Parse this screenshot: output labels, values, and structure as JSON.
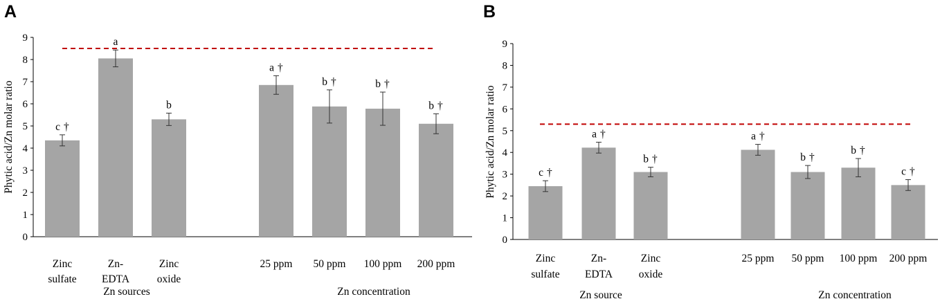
{
  "chart_data": [
    {
      "panel": "A",
      "type": "bar",
      "ylabel": "Phytic acid/Zn molar ratio",
      "ylim": [
        0,
        9
      ],
      "yticks": [
        "0",
        "1",
        "2",
        "3",
        "4",
        "5",
        "6",
        "7",
        "8",
        "9"
      ],
      "threshold": 8.5,
      "groups": [
        {
          "name": "Zn sources",
          "categories": [
            {
              "label": [
                "Zinc",
                "sulfate"
              ],
              "value": 4.35,
              "error": 0.25,
              "sig": "c",
              "dagger": true
            },
            {
              "label": [
                "Zn-",
                "EDTA"
              ],
              "value": 8.05,
              "error": 0.38,
              "sig": "a",
              "dagger": false
            },
            {
              "label": [
                "Zinc",
                "oxide"
              ],
              "value": 5.3,
              "error": 0.28,
              "sig": "b",
              "dagger": false
            }
          ]
        },
        {
          "name": "Zn concentration",
          "categories": [
            {
              "label": [
                "25 ppm"
              ],
              "value": 6.85,
              "error": 0.42,
              "sig": "a",
              "dagger": true
            },
            {
              "label": [
                "50 ppm"
              ],
              "value": 5.88,
              "error": 0.75,
              "sig": "b",
              "dagger": true
            },
            {
              "label": [
                "100 ppm"
              ],
              "value": 5.78,
              "error": 0.75,
              "sig": "b",
              "dagger": true
            },
            {
              "label": [
                "200 ppm"
              ],
              "value": 5.1,
              "error": 0.45,
              "sig": "b",
              "dagger": true
            }
          ]
        }
      ]
    },
    {
      "panel": "B",
      "type": "bar",
      "ylabel": "Phytic acid/Zn molar ratio",
      "ylim": [
        0,
        9
      ],
      "yticks": [
        "0",
        "1",
        "2",
        "3",
        "4",
        "5",
        "6",
        "7",
        "8",
        "9"
      ],
      "threshold": 5.3,
      "groups": [
        {
          "name": "Zn source",
          "categories": [
            {
              "label": [
                "Zinc",
                "sulfate"
              ],
              "value": 2.45,
              "error": 0.25,
              "sig": "c",
              "dagger": true
            },
            {
              "label": [
                "Zn-",
                "EDTA"
              ],
              "value": 4.22,
              "error": 0.25,
              "sig": "a",
              "dagger": true
            },
            {
              "label": [
                "Zinc",
                "oxide"
              ],
              "value": 3.1,
              "error": 0.22,
              "sig": "b",
              "dagger": true
            }
          ]
        },
        {
          "name": "Zn concentration",
          "categories": [
            {
              "label": [
                "25 ppm"
              ],
              "value": 4.12,
              "error": 0.25,
              "sig": "a",
              "dagger": true
            },
            {
              "label": [
                "50 ppm"
              ],
              "value": 3.1,
              "error": 0.3,
              "sig": "b",
              "dagger": true
            },
            {
              "label": [
                "100 ppm"
              ],
              "value": 3.3,
              "error": 0.42,
              "sig": "b",
              "dagger": true
            },
            {
              "label": [
                "200 ppm"
              ],
              "value": 2.5,
              "error": 0.25,
              "sig": "c",
              "dagger": true
            }
          ]
        }
      ]
    }
  ]
}
